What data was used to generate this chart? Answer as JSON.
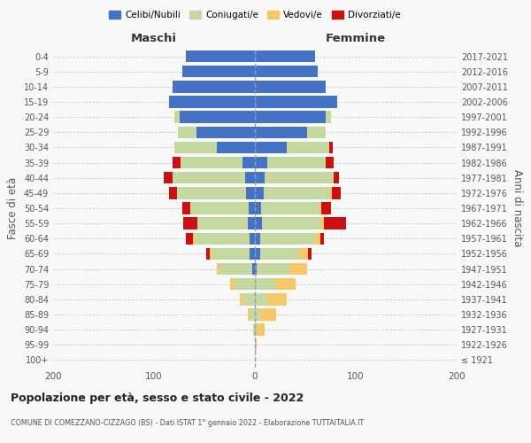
{
  "age_groups": [
    "100+",
    "95-99",
    "90-94",
    "85-89",
    "80-84",
    "75-79",
    "70-74",
    "65-69",
    "60-64",
    "55-59",
    "50-54",
    "45-49",
    "40-44",
    "35-39",
    "30-34",
    "25-29",
    "20-24",
    "15-19",
    "10-14",
    "5-9",
    "0-4"
  ],
  "birth_years": [
    "≤ 1921",
    "1922-1926",
    "1927-1931",
    "1932-1936",
    "1937-1941",
    "1942-1946",
    "1947-1951",
    "1952-1956",
    "1957-1961",
    "1962-1966",
    "1967-1971",
    "1972-1976",
    "1977-1981",
    "1982-1986",
    "1987-1991",
    "1992-1996",
    "1997-2001",
    "2002-2006",
    "2007-2011",
    "2012-2016",
    "2017-2021"
  ],
  "maschi": {
    "celibi": [
      0,
      0,
      0,
      0,
      0,
      0,
      3,
      5,
      5,
      7,
      6,
      9,
      10,
      12,
      38,
      58,
      75,
      85,
      82,
      72,
      68
    ],
    "coniugati": [
      0,
      0,
      2,
      5,
      12,
      20,
      32,
      38,
      55,
      50,
      58,
      68,
      72,
      62,
      42,
      18,
      4,
      0,
      0,
      0,
      0
    ],
    "vedovi": [
      0,
      0,
      0,
      2,
      3,
      5,
      3,
      2,
      1,
      0,
      0,
      0,
      0,
      0,
      0,
      0,
      1,
      0,
      0,
      0,
      0
    ],
    "divorziati": [
      0,
      0,
      0,
      0,
      0,
      0,
      0,
      3,
      7,
      14,
      8,
      8,
      8,
      8,
      0,
      0,
      0,
      0,
      0,
      0,
      0
    ]
  },
  "femmine": {
    "nubili": [
      0,
      0,
      0,
      0,
      0,
      0,
      2,
      5,
      5,
      7,
      6,
      9,
      10,
      12,
      32,
      52,
      70,
      82,
      70,
      62,
      60
    ],
    "coniugate": [
      0,
      0,
      2,
      5,
      12,
      20,
      32,
      38,
      55,
      58,
      58,
      65,
      68,
      58,
      42,
      18,
      5,
      0,
      0,
      0,
      0
    ],
    "vedove": [
      0,
      2,
      8,
      16,
      20,
      20,
      18,
      10,
      5,
      3,
      2,
      2,
      0,
      0,
      0,
      0,
      0,
      0,
      0,
      0,
      0
    ],
    "divorziate": [
      0,
      0,
      0,
      0,
      0,
      0,
      0,
      3,
      3,
      22,
      9,
      9,
      5,
      8,
      3,
      0,
      0,
      0,
      0,
      0,
      0
    ]
  },
  "colors": {
    "celibi": "#4472c4",
    "coniugati": "#c5d8a0",
    "vedovi": "#f5c96a",
    "divorziati": "#cc1010"
  },
  "xlim": 200,
  "title": "Popolazione per età, sesso e stato civile - 2022",
  "subtitle": "COMUNE DI COMEZZANO-CIZZAGO (BS) - Dati ISTAT 1° gennaio 2022 - Elaborazione TUTTAITALIA.IT",
  "ylabel": "Fasce di età",
  "ylabel_right": "Anni di nascita",
  "bg_color": "#f8f8f8",
  "grid_color": "#cccccc",
  "label_maschi": "Maschi",
  "label_femmine": "Femmine",
  "legend_labels": [
    "Celibi/Nubili",
    "Coniugati/e",
    "Vedovi/e",
    "Divorziati/e"
  ]
}
